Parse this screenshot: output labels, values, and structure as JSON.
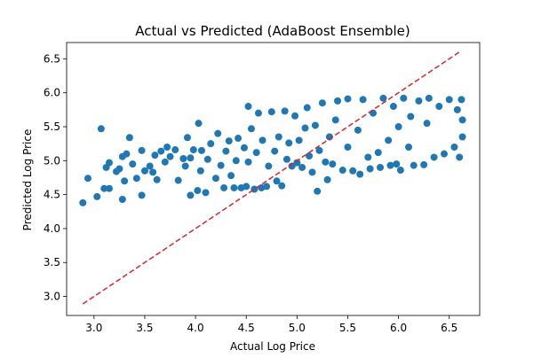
{
  "chart_data": {
    "type": "scatter",
    "title": "Actual vs Predicted (AdaBoost Ensemble)",
    "xlabel": "Actual Log Price",
    "ylabel": "Predicted Log Price",
    "xlim": [
      2.73,
      6.8
    ],
    "ylim": [
      2.72,
      6.74
    ],
    "xticks": [
      "3.0",
      "3.5",
      "4.0",
      "4.5",
      "5.0",
      "5.5",
      "6.0",
      "6.5"
    ],
    "yticks": [
      "3.0",
      "3.5",
      "4.0",
      "4.5",
      "5.0",
      "5.5",
      "6.0",
      "6.5"
    ],
    "grid": false,
    "colors": {
      "points": "#1f77b4",
      "reference_line": "#d62728"
    },
    "reference_line": {
      "style": "dashed",
      "x": [
        2.89,
        6.62
      ],
      "y": [
        2.89,
        6.62
      ]
    },
    "series": [
      {
        "marker": "circle",
        "points": [
          [
            2.89,
            4.38
          ],
          [
            2.94,
            4.74
          ],
          [
            3.03,
            4.47
          ],
          [
            3.07,
            5.47
          ],
          [
            3.1,
            4.59
          ],
          [
            3.12,
            4.9
          ],
          [
            3.15,
            4.97
          ],
          [
            3.15,
            4.59
          ],
          [
            3.22,
            4.84
          ],
          [
            3.25,
            4.88
          ],
          [
            3.28,
            4.43
          ],
          [
            3.28,
            5.06
          ],
          [
            3.3,
            4.7
          ],
          [
            3.32,
            5.1
          ],
          [
            3.35,
            5.34
          ],
          [
            3.38,
            4.95
          ],
          [
            3.42,
            4.74
          ],
          [
            3.47,
            4.49
          ],
          [
            3.47,
            5.15
          ],
          [
            3.5,
            4.85
          ],
          [
            3.55,
            4.92
          ],
          [
            3.58,
            4.83
          ],
          [
            3.6,
            5.08
          ],
          [
            3.62,
            4.72
          ],
          [
            3.66,
            5.14
          ],
          [
            3.7,
            4.98
          ],
          [
            3.72,
            5.2
          ],
          [
            3.75,
            5.06
          ],
          [
            3.8,
            5.16
          ],
          [
            3.83,
            4.71
          ],
          [
            3.88,
            5.03
          ],
          [
            3.9,
            4.92
          ],
          [
            3.92,
            5.34
          ],
          [
            3.95,
            4.49
          ],
          [
            3.95,
            5.04
          ],
          [
            3.98,
            5.16
          ],
          [
            4.02,
            4.56
          ],
          [
            4.03,
            5.55
          ],
          [
            4.05,
            4.85
          ],
          [
            4.06,
            5.15
          ],
          [
            4.1,
            4.53
          ],
          [
            4.12,
            5.02
          ],
          [
            4.15,
            5.25
          ],
          [
            4.2,
            4.74
          ],
          [
            4.22,
            5.4
          ],
          [
            4.25,
            4.93
          ],
          [
            4.28,
            4.6
          ],
          [
            4.3,
            5.14
          ],
          [
            4.33,
            5.29
          ],
          [
            4.35,
            4.78
          ],
          [
            4.38,
            4.6
          ],
          [
            4.4,
            5.0
          ],
          [
            4.42,
            5.33
          ],
          [
            4.45,
            4.6
          ],
          [
            4.48,
            5.19
          ],
          [
            4.5,
            4.62
          ],
          [
            4.52,
            5.8
          ],
          [
            4.52,
            4.98
          ],
          [
            4.55,
            5.47
          ],
          [
            4.58,
            4.58
          ],
          [
            4.6,
            5.12
          ],
          [
            4.62,
            5.7
          ],
          [
            4.65,
            4.6
          ],
          [
            4.66,
            5.3
          ],
          [
            4.7,
            4.62
          ],
          [
            4.72,
            4.92
          ],
          [
            4.75,
            5.72
          ],
          [
            4.78,
            5.14
          ],
          [
            4.8,
            4.7
          ],
          [
            4.82,
            5.35
          ],
          [
            4.85,
            4.63
          ],
          [
            4.88,
            5.73
          ],
          [
            4.9,
            5.02
          ],
          [
            4.92,
            5.26
          ],
          [
            4.95,
            4.92
          ],
          [
            4.98,
            5.66
          ],
          [
            5.0,
            4.97
          ],
          [
            5.02,
            5.3
          ],
          [
            5.05,
            4.9
          ],
          [
            5.08,
            5.48
          ],
          [
            5.1,
            5.78
          ],
          [
            5.12,
            5.07
          ],
          [
            5.15,
            4.83
          ],
          [
            5.18,
            5.52
          ],
          [
            5.2,
            4.55
          ],
          [
            5.22,
            5.15
          ],
          [
            5.25,
            5.85
          ],
          [
            5.28,
            4.98
          ],
          [
            5.3,
            4.72
          ],
          [
            5.32,
            5.35
          ],
          [
            5.35,
            4.95
          ],
          [
            5.38,
            5.6
          ],
          [
            5.4,
            5.88
          ],
          [
            5.45,
            4.86
          ],
          [
            5.5,
            5.2
          ],
          [
            5.5,
            5.91
          ],
          [
            5.55,
            4.85
          ],
          [
            5.6,
            5.45
          ],
          [
            5.62,
            4.8
          ],
          [
            5.65,
            5.9
          ],
          [
            5.7,
            5.05
          ],
          [
            5.72,
            4.88
          ],
          [
            5.75,
            5.7
          ],
          [
            5.8,
            5.12
          ],
          [
            5.82,
            4.9
          ],
          [
            5.85,
            5.92
          ],
          [
            5.9,
            5.3
          ],
          [
            5.92,
            4.93
          ],
          [
            5.95,
            5.8
          ],
          [
            5.98,
            4.95
          ],
          [
            6.0,
            5.5
          ],
          [
            6.02,
            4.86
          ],
          [
            6.05,
            5.92
          ],
          [
            6.1,
            5.2
          ],
          [
            6.12,
            5.65
          ],
          [
            6.15,
            4.93
          ],
          [
            6.2,
            5.88
          ],
          [
            6.25,
            4.94
          ],
          [
            6.28,
            5.55
          ],
          [
            6.3,
            5.92
          ],
          [
            6.35,
            5.05
          ],
          [
            6.4,
            5.8
          ],
          [
            6.45,
            5.1
          ],
          [
            6.5,
            5.9
          ],
          [
            6.55,
            5.2
          ],
          [
            6.58,
            5.75
          ],
          [
            6.6,
            5.05
          ],
          [
            6.62,
            5.9
          ],
          [
            6.63,
            5.35
          ],
          [
            6.63,
            5.6
          ]
        ]
      }
    ]
  }
}
